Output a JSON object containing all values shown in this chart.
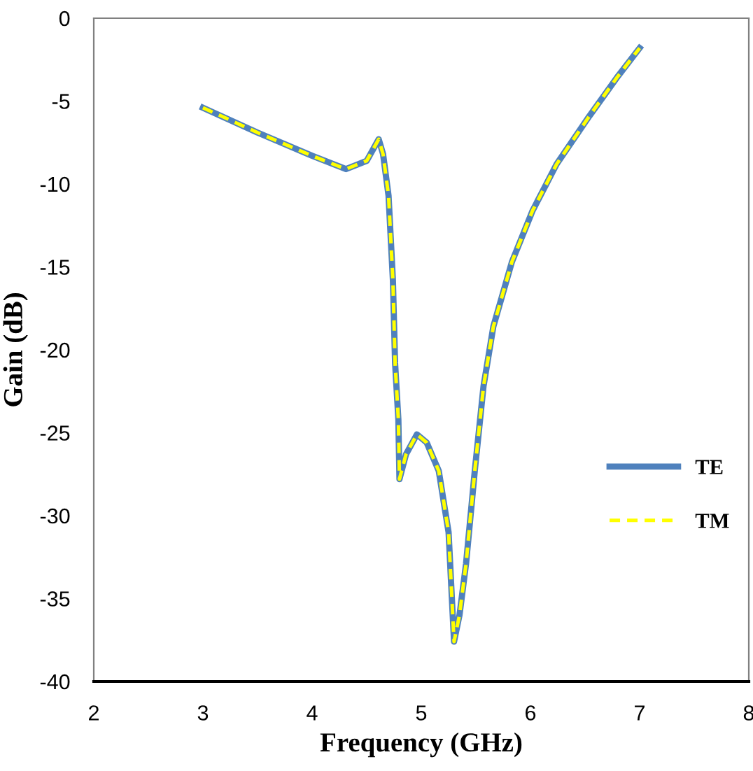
{
  "chart_data": {
    "type": "line",
    "xlabel": "Frequency (GHz)",
    "ylabel": "Gain (dB)",
    "x": [
      3.0,
      3.5,
      4.0,
      4.31,
      4.5,
      4.61,
      4.65,
      4.7,
      4.74,
      4.76,
      4.79,
      4.8,
      4.86,
      4.96,
      5.05,
      5.16,
      5.25,
      5.3,
      5.35,
      5.41,
      5.49,
      5.57,
      5.66,
      5.83,
      6.02,
      6.24,
      6.54,
      6.79,
      7.0
    ],
    "series": [
      {
        "name": "TE",
        "color": "#4f81bd",
        "line_style": "solid",
        "values": [
          -5.4,
          -6.9,
          -8.3,
          -9.1,
          -8.6,
          -7.3,
          -8.2,
          -10.7,
          -15.8,
          -20.8,
          -24.2,
          -27.8,
          -26.3,
          -25.1,
          -25.6,
          -27.3,
          -31.0,
          -37.6,
          -36.0,
          -32.9,
          -27.3,
          -22.2,
          -18.6,
          -14.7,
          -11.6,
          -8.8,
          -5.9,
          -3.6,
          -1.8
        ]
      },
      {
        "name": "TM",
        "color": "#ffff00",
        "line_style": "dashed",
        "values": [
          -5.4,
          -6.9,
          -8.3,
          -9.1,
          -8.6,
          -7.3,
          -8.2,
          -10.7,
          -15.8,
          -20.8,
          -24.2,
          -27.8,
          -26.3,
          -25.1,
          -25.6,
          -27.3,
          -31.0,
          -37.6,
          -36.0,
          -32.9,
          -27.3,
          -22.2,
          -18.6,
          -14.7,
          -11.6,
          -8.8,
          -5.9,
          -3.6,
          -1.8
        ]
      }
    ],
    "xlim": [
      2,
      8
    ],
    "xticks": [
      2,
      3,
      4,
      5,
      6,
      7,
      8
    ],
    "ylim": [
      -40,
      0
    ],
    "yticks": [
      -40,
      -35,
      -30,
      -25,
      -20,
      -15,
      -10,
      -5,
      0
    ],
    "grid": false,
    "legend": "right",
    "marker": "none"
  }
}
